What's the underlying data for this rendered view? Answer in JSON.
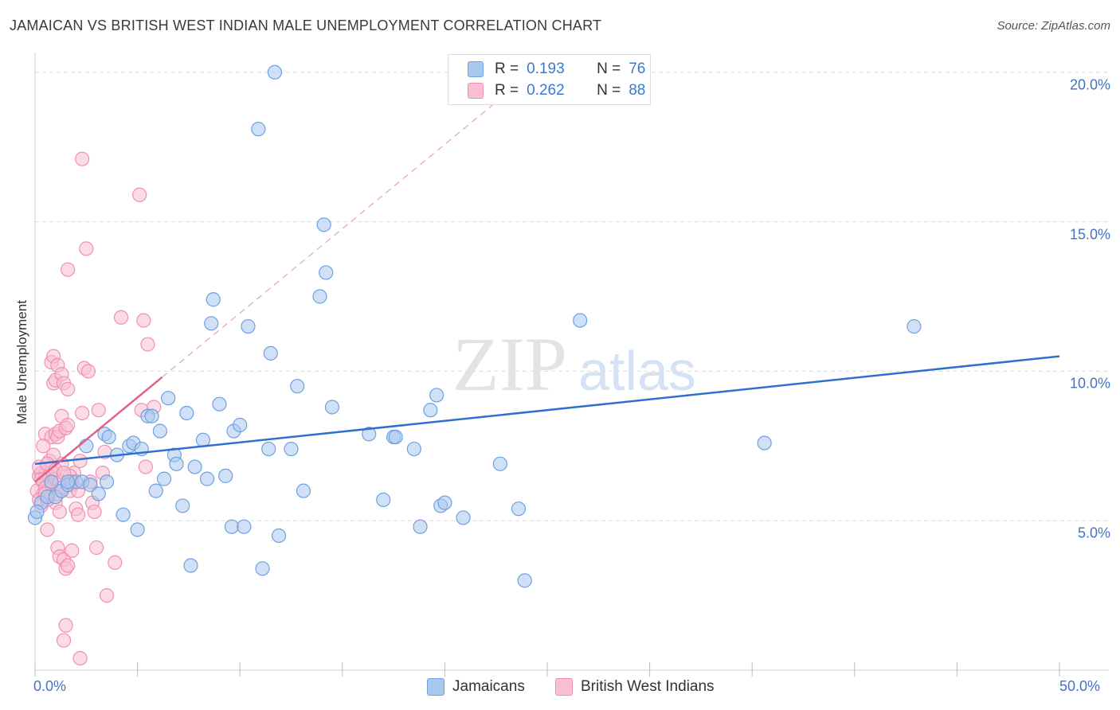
{
  "chart_data": {
    "type": "scatter",
    "title": "JAMAICAN VS BRITISH WEST INDIAN MALE UNEMPLOYMENT CORRELATION CHART",
    "source": "Source: ZipAtlas.com",
    "xlabel": "",
    "ylabel": "Male Unemployment",
    "xlim": [
      0,
      50
    ],
    "ylim": [
      0,
      20.5
    ],
    "x_tick_labels": [
      "0.0%",
      "50.0%"
    ],
    "y_ticks": [
      5,
      10,
      15,
      20
    ],
    "y_tick_labels": [
      "5.0%",
      "10.0%",
      "15.0%",
      "20.0%"
    ],
    "grid": true,
    "watermark": "ZIPatlas",
    "legend": [
      {
        "r_label": "R =",
        "r_value": "0.193",
        "n_label": "N =",
        "n_value": "76"
      },
      {
        "r_label": "R =",
        "r_value": "0.262",
        "n_label": "N =",
        "n_value": "88"
      }
    ],
    "series": [
      {
        "name": "Jamaicans",
        "color": "#6fa0e0",
        "fill": "#a9c8f0",
        "trend_color": "#2f6fcf",
        "trend": {
          "x": [
            0,
            50
          ],
          "y": [
            6.9,
            10.5
          ]
        },
        "points": [
          [
            0.0,
            5.1
          ],
          [
            0.3,
            5.6
          ],
          [
            0.6,
            5.8
          ],
          [
            1.0,
            5.8
          ],
          [
            1.3,
            6.0
          ],
          [
            1.6,
            6.2
          ],
          [
            2.0,
            6.3
          ],
          [
            2.3,
            6.3
          ],
          [
            2.7,
            6.2
          ],
          [
            3.1,
            5.9
          ],
          [
            3.5,
            6.3
          ],
          [
            0.8,
            6.3
          ],
          [
            1.6,
            6.3
          ],
          [
            2.5,
            7.5
          ],
          [
            3.4,
            7.9
          ],
          [
            3.6,
            7.8
          ],
          [
            4.0,
            7.2
          ],
          [
            4.3,
            5.2
          ],
          [
            4.6,
            7.5
          ],
          [
            4.8,
            7.6
          ],
          [
            5.0,
            4.7
          ],
          [
            5.2,
            7.4
          ],
          [
            5.5,
            8.5
          ],
          [
            5.7,
            8.5
          ],
          [
            5.9,
            6.0
          ],
          [
            6.1,
            8.0
          ],
          [
            6.3,
            6.4
          ],
          [
            6.5,
            9.1
          ],
          [
            6.8,
            7.2
          ],
          [
            6.9,
            6.9
          ],
          [
            7.2,
            5.5
          ],
          [
            7.4,
            8.6
          ],
          [
            7.6,
            3.5
          ],
          [
            7.8,
            6.8
          ],
          [
            8.2,
            7.7
          ],
          [
            8.4,
            6.4
          ],
          [
            8.6,
            11.6
          ],
          [
            8.7,
            12.4
          ],
          [
            9.0,
            8.9
          ],
          [
            9.3,
            6.5
          ],
          [
            9.6,
            4.8
          ],
          [
            9.7,
            8.0
          ],
          [
            10.0,
            8.2
          ],
          [
            10.2,
            4.8
          ],
          [
            10.4,
            11.5
          ],
          [
            10.9,
            18.1
          ],
          [
            11.1,
            3.4
          ],
          [
            11.4,
            7.4
          ],
          [
            11.5,
            10.6
          ],
          [
            11.7,
            20.0
          ],
          [
            11.9,
            4.5
          ],
          [
            12.5,
            7.4
          ],
          [
            12.8,
            9.5
          ],
          [
            13.1,
            6.0
          ],
          [
            13.9,
            12.5
          ],
          [
            14.1,
            14.9
          ],
          [
            14.2,
            13.3
          ],
          [
            14.5,
            8.8
          ],
          [
            16.3,
            7.9
          ],
          [
            17.0,
            5.7
          ],
          [
            17.5,
            7.8
          ],
          [
            17.6,
            7.8
          ],
          [
            18.5,
            7.4
          ],
          [
            18.8,
            4.8
          ],
          [
            19.3,
            8.7
          ],
          [
            19.6,
            9.2
          ],
          [
            19.8,
            5.5
          ],
          [
            20.0,
            5.6
          ],
          [
            20.9,
            5.1
          ],
          [
            22.7,
            6.9
          ],
          [
            23.6,
            5.4
          ],
          [
            23.9,
            3.0
          ],
          [
            26.6,
            11.7
          ],
          [
            35.6,
            7.6
          ],
          [
            42.9,
            11.5
          ],
          [
            0.1,
            5.3
          ]
        ]
      },
      {
        "name": "British West Indians",
        "color": "#f090b0",
        "fill": "#f8c0d2",
        "trend_color": "#e0608a",
        "trend": {
          "x": [
            0,
            6.2
          ],
          "y": [
            6.3,
            9.8
          ]
        },
        "trend_ext": {
          "x": [
            6.2,
            22.5
          ],
          "y": [
            9.8,
            19.0
          ]
        },
        "points": [
          [
            0.1,
            6.0
          ],
          [
            0.2,
            6.5
          ],
          [
            0.3,
            5.5
          ],
          [
            0.3,
            6.6
          ],
          [
            0.4,
            5.9
          ],
          [
            0.4,
            6.3
          ],
          [
            0.5,
            6.6
          ],
          [
            0.5,
            7.9
          ],
          [
            0.6,
            4.7
          ],
          [
            0.6,
            6.2
          ],
          [
            0.7,
            6.1
          ],
          [
            0.7,
            6.5
          ],
          [
            0.8,
            7.8
          ],
          [
            0.8,
            10.3
          ],
          [
            0.9,
            9.6
          ],
          [
            0.9,
            10.5
          ],
          [
            1.0,
            5.6
          ],
          [
            1.0,
            7.9
          ],
          [
            1.0,
            9.7
          ],
          [
            1.1,
            4.1
          ],
          [
            1.1,
            7.8
          ],
          [
            1.1,
            10.2
          ],
          [
            1.2,
            3.8
          ],
          [
            1.2,
            5.3
          ],
          [
            1.2,
            8.0
          ],
          [
            1.3,
            6.9
          ],
          [
            1.3,
            8.5
          ],
          [
            1.3,
            9.9
          ],
          [
            1.4,
            1.0
          ],
          [
            1.4,
            3.7
          ],
          [
            1.4,
            9.6
          ],
          [
            1.5,
            1.5
          ],
          [
            1.5,
            3.4
          ],
          [
            1.5,
            8.1
          ],
          [
            1.6,
            3.5
          ],
          [
            1.6,
            8.2
          ],
          [
            1.6,
            9.4
          ],
          [
            1.6,
            13.4
          ],
          [
            1.7,
            6.0
          ],
          [
            1.8,
            4.0
          ],
          [
            1.8,
            6.2
          ],
          [
            1.9,
            6.6
          ],
          [
            2.0,
            5.4
          ],
          [
            2.1,
            5.2
          ],
          [
            2.2,
            0.4
          ],
          [
            2.2,
            7.0
          ],
          [
            2.3,
            8.6
          ],
          [
            2.3,
            17.1
          ],
          [
            2.4,
            10.1
          ],
          [
            2.5,
            14.1
          ],
          [
            2.6,
            10.0
          ],
          [
            2.7,
            6.3
          ],
          [
            2.8,
            5.6
          ],
          [
            2.9,
            5.3
          ],
          [
            3.0,
            4.1
          ],
          [
            3.1,
            8.7
          ],
          [
            3.3,
            6.6
          ],
          [
            3.4,
            7.3
          ],
          [
            3.5,
            2.5
          ],
          [
            3.9,
            3.6
          ],
          [
            4.2,
            11.8
          ],
          [
            5.1,
            15.9
          ],
          [
            5.2,
            8.7
          ],
          [
            5.3,
            11.7
          ],
          [
            5.4,
            6.8
          ],
          [
            5.5,
            10.9
          ],
          [
            5.8,
            8.8
          ],
          [
            0.2,
            5.7
          ],
          [
            0.3,
            6.4
          ],
          [
            0.4,
            7.5
          ],
          [
            0.5,
            6.1
          ],
          [
            0.6,
            5.7
          ],
          [
            0.7,
            7.0
          ],
          [
            0.8,
            6.2
          ],
          [
            0.9,
            6.6
          ],
          [
            1.0,
            6.4
          ],
          [
            1.1,
            5.9
          ],
          [
            1.2,
            6.3
          ],
          [
            0.5,
            5.9
          ],
          [
            0.9,
            7.2
          ],
          [
            1.3,
            6.1
          ],
          [
            1.7,
            6.5
          ],
          [
            2.1,
            6.0
          ],
          [
            0.2,
            6.8
          ],
          [
            0.6,
            6.9
          ],
          [
            1.0,
            6.7
          ],
          [
            1.4,
            6.6
          ],
          [
            1.8,
            6.3
          ]
        ]
      }
    ]
  }
}
